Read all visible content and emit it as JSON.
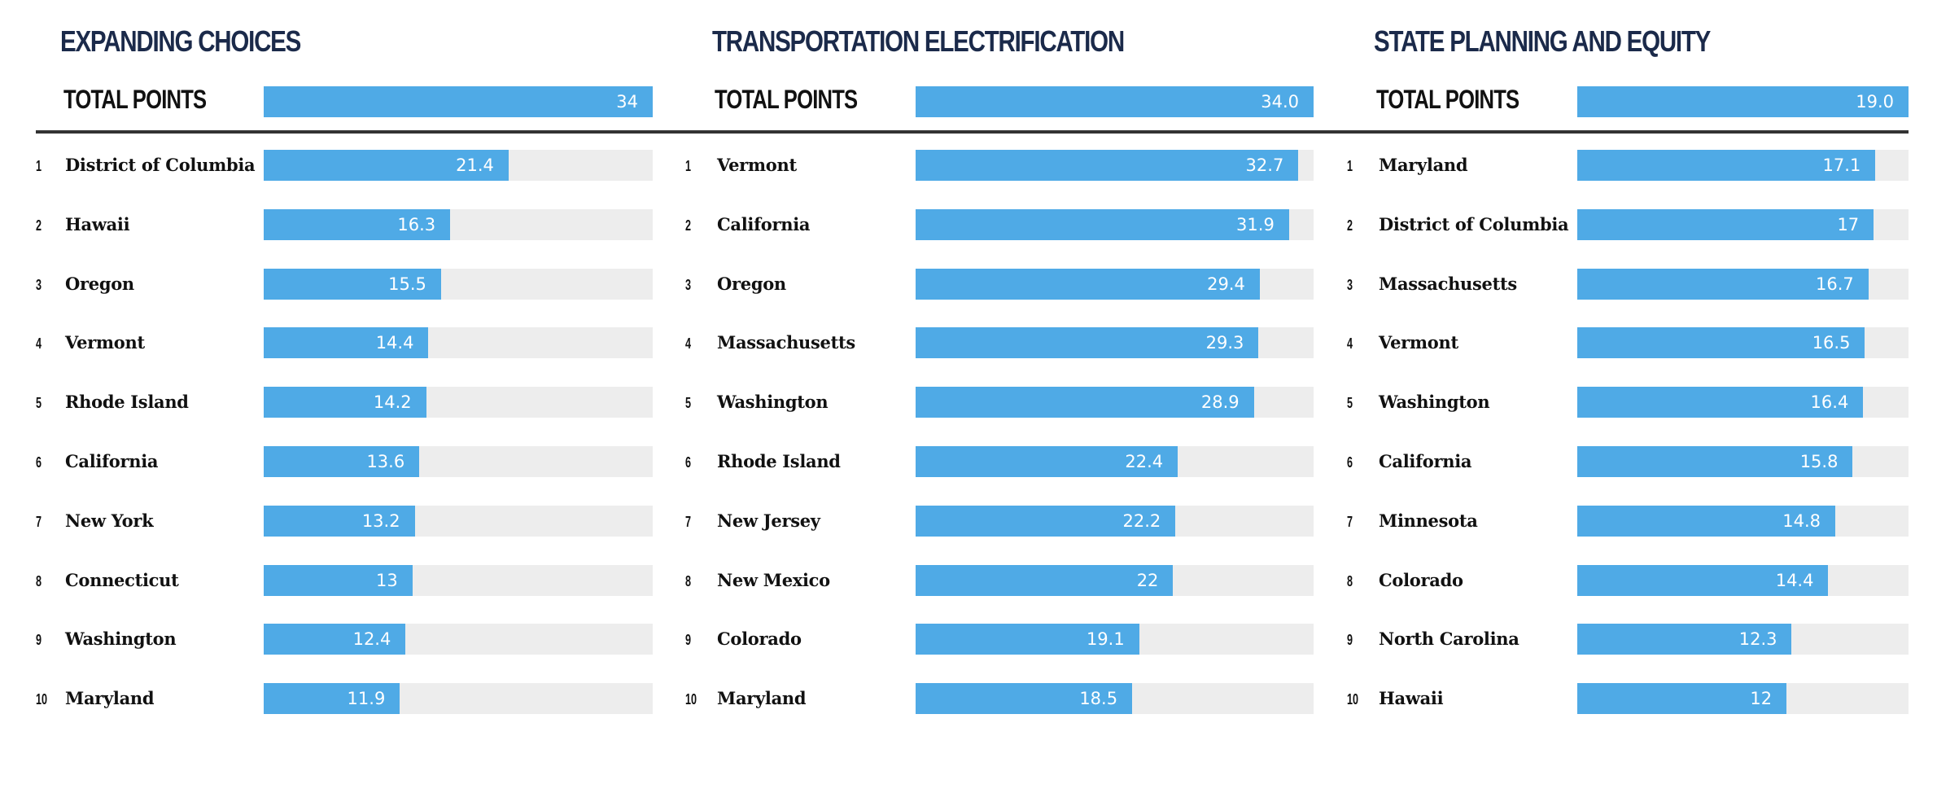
{
  "colors": {
    "bar": "#4faae6",
    "track": "#ededed",
    "title": "#1b2a4a",
    "divider": "#333333"
  },
  "chart_data": [
    {
      "type": "bar",
      "orientation": "horizontal",
      "title": "EXPANDING CHOICES",
      "total_label": "TOTAL POINTS",
      "total_value": 34,
      "total_display": "34",
      "xlim": [
        0,
        34
      ],
      "categories": [
        "District of Columbia",
        "Hawaii",
        "Oregon",
        "Vermont",
        "Rhode Island",
        "California",
        "New York",
        "Connecticut",
        "Washington",
        "Maryland"
      ],
      "ranks": [
        "1",
        "2",
        "3",
        "4",
        "5",
        "6",
        "7",
        "8",
        "9",
        "10"
      ],
      "values": [
        21.4,
        16.3,
        15.5,
        14.4,
        14.2,
        13.6,
        13.2,
        13,
        12.4,
        11.9
      ],
      "labels": [
        "21.4",
        "16.3",
        "15.5",
        "14.4",
        "14.2",
        "13.6",
        "13.2",
        "13",
        "12.4",
        "11.9"
      ]
    },
    {
      "type": "bar",
      "orientation": "horizontal",
      "title": "TRANSPORTATION ELECTRIFICATION",
      "total_label": "TOTAL POINTS",
      "total_value": 34.0,
      "total_display": "34.0",
      "xlim": [
        0,
        34
      ],
      "categories": [
        "Vermont",
        "California",
        "Oregon",
        "Massachusetts",
        "Washington",
        "Rhode Island",
        "New Jersey",
        "New Mexico",
        "Colorado",
        "Maryland"
      ],
      "ranks": [
        "1",
        "2",
        "3",
        "4",
        "5",
        "6",
        "7",
        "8",
        "9",
        "10"
      ],
      "values": [
        32.7,
        31.9,
        29.4,
        29.3,
        28.9,
        22.4,
        22.2,
        22,
        19.1,
        18.5
      ],
      "labels": [
        "32.7",
        "31.9",
        "29.4",
        "29.3",
        "28.9",
        "22.4",
        "22.2",
        "22",
        "19.1",
        "18.5"
      ]
    },
    {
      "type": "bar",
      "orientation": "horizontal",
      "title": "STATE PLANNING AND EQUITY",
      "total_label": "TOTAL POINTS",
      "total_value": 19.0,
      "total_display": "19.0",
      "xlim": [
        0,
        19
      ],
      "categories": [
        "Maryland",
        "District of Columbia",
        "Massachusetts",
        "Vermont",
        "Washington",
        "California",
        "Minnesota",
        "Colorado",
        "North Carolina",
        "Hawaii"
      ],
      "ranks": [
        "1",
        "2",
        "3",
        "4",
        "5",
        "6",
        "7",
        "8",
        "9",
        "10"
      ],
      "values": [
        17.1,
        17,
        16.7,
        16.5,
        16.4,
        15.8,
        14.8,
        14.4,
        12.3,
        12
      ],
      "labels": [
        "17.1",
        "17",
        "16.7",
        "16.5",
        "16.4",
        "15.8",
        "14.8",
        "14.4",
        "12.3",
        "12"
      ]
    }
  ]
}
